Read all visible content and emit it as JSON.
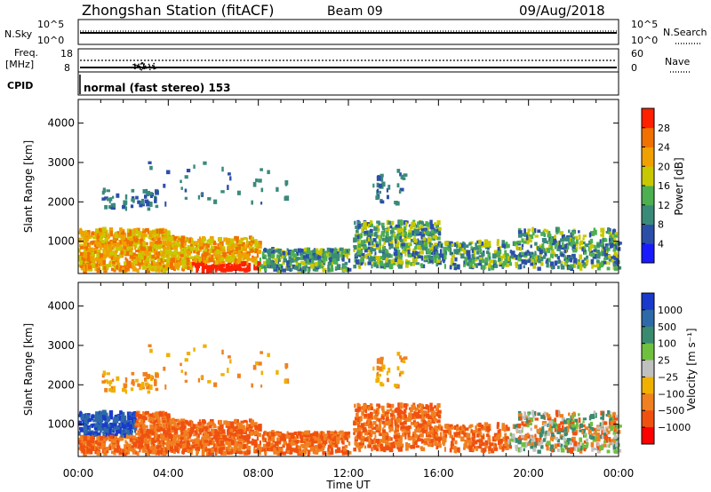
{
  "header": {
    "station": "Zhongshan Station (fitACF)",
    "beam": "Beam 09",
    "date": "09/Aug/2018"
  },
  "top_panel": {
    "nsky_label": "N.Sky",
    "nsearch_label": "N.Search",
    "left_ticks": [
      "10^5",
      "10^0"
    ],
    "right_ticks": [
      "10^5",
      "10^0"
    ],
    "freq_label_line1": "Freq.",
    "freq_label_line2": "[MHz]",
    "freq_ticks": [
      "18",
      "8"
    ],
    "nave_label": "Nave",
    "nave_ticks": [
      "60",
      "0"
    ],
    "cpid_label": "CPID",
    "cpid_text": "normal (fast stereo) 153"
  },
  "chart_data": [
    {
      "type": "heatmap",
      "name": "power",
      "ylabel": "Slant Range [km]",
      "xlabel": "",
      "x_ticks": [
        "00:00",
        "04:00",
        "08:00",
        "12:00",
        "16:00",
        "20:00",
        "00:00"
      ],
      "y_ticks": [
        "1000",
        "2000",
        "3000",
        "4000"
      ],
      "y_tick_values": [
        1000,
        2000,
        3000,
        4000
      ],
      "ylim": [
        180,
        4600
      ],
      "xlim_hours": [
        0,
        24
      ],
      "colorbar_label": "Power [dB]",
      "colorbar_ticks": [
        "4",
        "8",
        "12",
        "16",
        "20",
        "24",
        "28"
      ],
      "colorbar_colors": [
        "#1a1aff",
        "#2b4fa8",
        "#3a8a7a",
        "#4caf50",
        "#c8c800",
        "#f0a000",
        "#f07000",
        "#ff2000"
      ]
    },
    {
      "type": "heatmap",
      "name": "velocity",
      "ylabel": "Slant Range [km]",
      "xlabel": "Time UT",
      "x_ticks": [
        "00:00",
        "04:00",
        "08:00",
        "12:00",
        "16:00",
        "20:00",
        "00:00"
      ],
      "y_ticks": [
        "1000",
        "2000",
        "3000",
        "4000"
      ],
      "y_tick_values": [
        1000,
        2000,
        3000,
        4000
      ],
      "ylim": [
        180,
        4600
      ],
      "xlim_hours": [
        0,
        24
      ],
      "colorbar_label": "Velocity [m s⁻¹]",
      "colorbar_ticks": [
        "1000",
        "500",
        "100",
        "25",
        "−25",
        "−100",
        "−500",
        "−1000"
      ],
      "colorbar_colors": [
        "#1a3acc",
        "#2e6aa8",
        "#3a8a70",
        "#70c040",
        "#c0c0c0",
        "#f0b000",
        "#f08020",
        "#f05010",
        "#ff0000"
      ]
    }
  ]
}
